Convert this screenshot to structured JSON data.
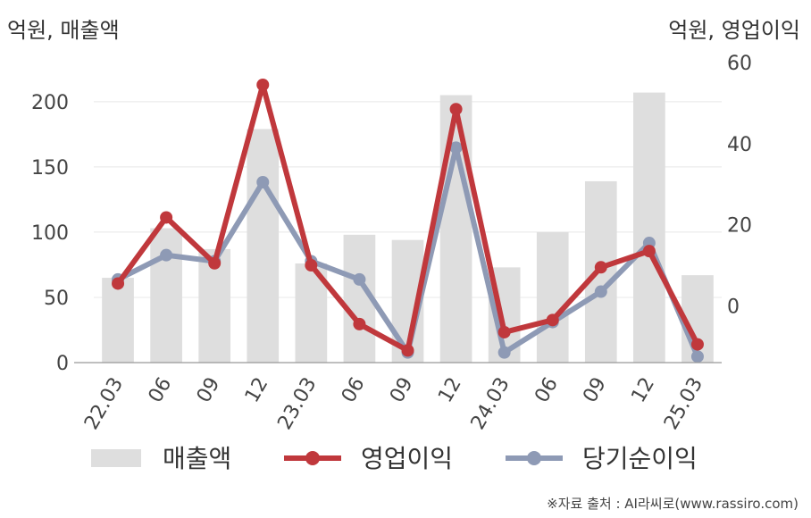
{
  "units": {
    "left": "억원, 매출액",
    "right": "억원, 영업이익"
  },
  "source": "※자료 출처 : AI라씨로(www.rassiro.com)",
  "colors": {
    "bar": "#dedede",
    "operating": "#c0383c",
    "net": "#8e9ab5",
    "axis": "#999999",
    "grid": "#e8e8e8"
  },
  "chart_data": {
    "type": "bar",
    "categories": [
      "22.03",
      "06",
      "09",
      "12",
      "23.03",
      "06",
      "09",
      "12",
      "24.03",
      "06",
      "09",
      "12",
      "25.03"
    ],
    "y_left": {
      "ylim": [
        0,
        230
      ],
      "ticks": [
        0,
        50,
        100,
        150,
        200
      ]
    },
    "y_right": {
      "ylim": [
        -14,
        60
      ],
      "ticks": [
        0,
        20,
        40,
        60
      ]
    },
    "series": [
      {
        "name": "매출액",
        "kind": "bar",
        "axis": "left",
        "values": [
          65,
          103,
          87,
          179,
          76,
          98,
          94,
          205,
          73,
          100,
          139,
          207,
          67
        ]
      },
      {
        "name": "영업이익",
        "kind": "line",
        "axis": "right",
        "values": [
          5.5,
          21.8,
          10.5,
          54.5,
          10,
          -4.5,
          -11,
          48.5,
          -6.5,
          -3.5,
          9.5,
          13.5,
          -9.5
        ]
      },
      {
        "name": "당기순이익",
        "kind": "line",
        "axis": "right",
        "values": [
          6.5,
          12.5,
          11,
          30.5,
          11,
          6.5,
          -11.5,
          39,
          -11.5,
          -4,
          3.5,
          15.5,
          -12.5
        ]
      }
    ]
  }
}
